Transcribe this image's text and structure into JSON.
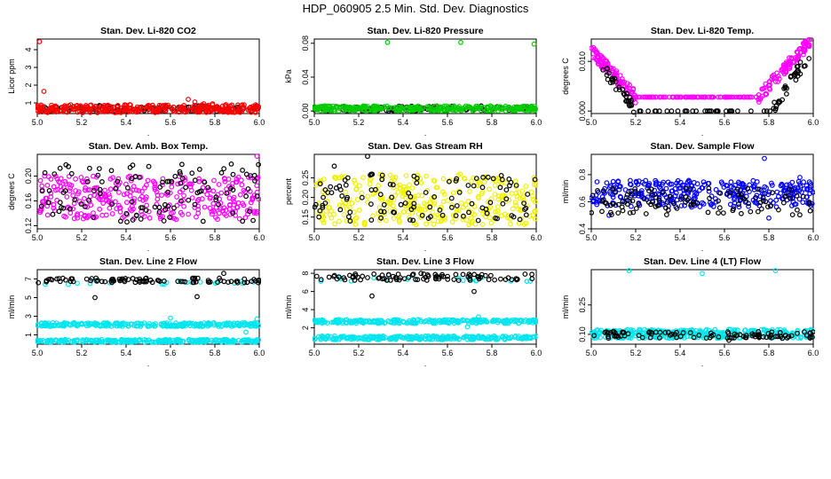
{
  "figure": {
    "title": "HDP_060905  2.5 Min. Std. Dev. Diagnostics"
  },
  "chart_data": [
    {
      "type": "scatter",
      "title": "Stan. Dev. Li-820 CO2",
      "xlabel": ".",
      "ylabel": "Licor ppm",
      "xlim": [
        5.0,
        6.0
      ],
      "ylim": [
        0.4,
        4.6
      ],
      "xticks": [
        "5.0",
        "5.2",
        "5.4",
        "5.6",
        "5.8",
        "6.0"
      ],
      "yticks": [
        "1",
        "2",
        "3",
        "4"
      ],
      "grid": false,
      "series": [
        {
          "name": "black",
          "color": "#000000",
          "band": {
            "x": [
              5.0,
              6.0
            ],
            "ylo": 0.5,
            "yhi": 0.85,
            "n": 110,
            "seed": 11
          }
        },
        {
          "name": "red",
          "color": "#ff0000",
          "band": {
            "x": [
              5.0,
              6.0
            ],
            "ylo": 0.45,
            "yhi": 0.9,
            "n": 320,
            "seed": 12
          },
          "points": [
            [
              5.01,
              4.45
            ],
            [
              5.03,
              1.65
            ],
            [
              5.68,
              1.2
            ],
            [
              5.71,
              1.05
            ],
            [
              5.75,
              0.95
            ],
            [
              5.79,
              0.95
            ],
            [
              5.85,
              0.9
            ]
          ]
        }
      ]
    },
    {
      "type": "scatter",
      "title": "Stan. Dev. Li-820 Pressure",
      "xlabel": ".",
      "ylabel": "kPa",
      "xlim": [
        5.0,
        6.0
      ],
      "ylim": [
        -0.003,
        0.085
      ],
      "xticks": [
        "5.0",
        "5.2",
        "5.4",
        "5.6",
        "5.8",
        "6.0"
      ],
      "yticks": [
        "0.00",
        "0.04",
        "0.08"
      ],
      "grid": false,
      "series": [
        {
          "name": "black",
          "color": "#000000",
          "band": {
            "x": [
              5.0,
              6.0
            ],
            "ylo": 0.0,
            "yhi": 0.006,
            "n": 110,
            "seed": 21
          }
        },
        {
          "name": "green",
          "color": "#00cc00",
          "band": {
            "x": [
              5.0,
              6.0
            ],
            "ylo": 0.0,
            "yhi": 0.006,
            "n": 320,
            "seed": 22
          },
          "points": [
            [
              5.33,
              0.081
            ],
            [
              5.66,
              0.081
            ],
            [
              5.99,
              0.079
            ]
          ]
        }
      ]
    },
    {
      "type": "scatter",
      "title": "Stan. Dev. Li-820 Temp.",
      "xlabel": ".",
      "ylabel": "degrees C",
      "xlim": [
        5.0,
        6.0
      ],
      "ylim": [
        -0.0005,
        0.0145
      ],
      "xticks": [
        "5.0",
        "5.2",
        "5.4",
        "5.6",
        "5.8",
        "6.0"
      ],
      "yticks": [
        "0.000",
        "0.010"
      ],
      "grid": false,
      "series": [
        {
          "name": "magenta",
          "color": "#ff00ff",
          "vshape": {
            "left": [
              5.0,
              5.2,
              0.012,
              0.0028
            ],
            "flat": [
              5.2,
              5.75,
              0.0028
            ],
            "right": [
              5.75,
              5.99,
              0.0028,
              0.0142
            ],
            "n": 300,
            "seed": 31
          }
        },
        {
          "name": "black",
          "color": "#000000",
          "vshape": {
            "left": [
              5.05,
              5.2,
              0.0085,
              0.0005
            ],
            "flat": [
              5.2,
              5.82,
              0.0
            ],
            "right": [
              5.82,
              5.99,
              0.0005,
              0.012
            ],
            "n": 100,
            "seed": 32
          }
        }
      ]
    },
    {
      "type": "scatter",
      "title": "Stan. Dev. Amb. Box Temp.",
      "xlabel": ".",
      "ylabel": "degrees C",
      "xlim": [
        5.0,
        6.0
      ],
      "ylim": [
        0.115,
        0.235
      ],
      "xticks": [
        "5.0",
        "5.2",
        "5.4",
        "5.6",
        "5.8",
        "6.0"
      ],
      "yticks": [
        "0.12",
        "0.16",
        "0.20"
      ],
      "grid": false,
      "series": [
        {
          "name": "magenta",
          "color": "#ff00ff",
          "band": {
            "x": [
              5.0,
              6.0
            ],
            "ylo": 0.13,
            "yhi": 0.2,
            "n": 330,
            "seed": 41
          },
          "points": [
            [
              5.99,
              0.232
            ]
          ]
        },
        {
          "name": "black",
          "color": "#000000",
          "band": {
            "x": [
              5.0,
              6.0
            ],
            "ylo": 0.125,
            "yhi": 0.22,
            "n": 110,
            "seed": 42
          }
        }
      ]
    },
    {
      "type": "scatter",
      "title": "Stan. Dev. Gas Stream RH",
      "xlabel": ".",
      "ylabel": "percent",
      "xlim": [
        5.0,
        6.0
      ],
      "ylim": [
        0.12,
        0.31
      ],
      "xticks": [
        "5.0",
        "5.2",
        "5.4",
        "5.6",
        "5.8",
        "6.0"
      ],
      "yticks": [
        "0.15",
        "0.20",
        "0.25"
      ],
      "grid": false,
      "series": [
        {
          "name": "yellow",
          "color": "#f0f000",
          "band": {
            "x": [
              5.0,
              6.0
            ],
            "ylo": 0.13,
            "yhi": 0.26,
            "n": 330,
            "seed": 51
          }
        },
        {
          "name": "black",
          "color": "#000000",
          "band": {
            "x": [
              5.0,
              6.0
            ],
            "ylo": 0.14,
            "yhi": 0.26,
            "n": 110,
            "seed": 52
          },
          "points": [
            [
              5.24,
              0.305
            ],
            [
              5.09,
              0.28
            ]
          ]
        }
      ]
    },
    {
      "type": "scatter",
      "title": "Stan. Dev. Sample Flow",
      "xlabel": ".",
      "ylabel": "ml/min",
      "xlim": [
        5.0,
        6.0
      ],
      "ylim": [
        0.4,
        0.95
      ],
      "xticks": [
        "5.0",
        "5.2",
        "5.4",
        "5.6",
        "5.8",
        "6.0"
      ],
      "yticks": [
        "0.4",
        "0.6",
        "0.8"
      ],
      "grid": false,
      "series": [
        {
          "name": "blue",
          "color": "#0000ff",
          "band": {
            "x": [
              5.0,
              6.0
            ],
            "ylo": 0.56,
            "yhi": 0.76,
            "n": 330,
            "seed": 61
          },
          "points": [
            [
              5.78,
              0.92
            ],
            [
              5.94,
              0.78
            ],
            [
              5.08,
              0.5
            ],
            [
              5.8,
              0.48
            ]
          ]
        },
        {
          "name": "black",
          "color": "#000000",
          "band": {
            "x": [
              5.0,
              6.0
            ],
            "ylo": 0.5,
            "yhi": 0.7,
            "n": 110,
            "seed": 62
          }
        }
      ]
    },
    {
      "type": "scatter",
      "title": "Stan. Dev. Line 2 Flow",
      "xlabel": ".",
      "ylabel": "ml/min",
      "xlim": [
        5.0,
        6.0
      ],
      "ylim": [
        0.0,
        8.0
      ],
      "xticks": [
        "5.0",
        "5.2",
        "5.4",
        "5.6",
        "5.8",
        "6.0"
      ],
      "yticks": [
        "1",
        "3",
        "5",
        "7"
      ],
      "grid": false,
      "series": [
        {
          "name": "cyan-low",
          "color": "#00e5ee",
          "band": {
            "x": [
              5.0,
              6.0
            ],
            "ylo": 0.2,
            "yhi": 0.5,
            "n": 260,
            "seed": 71
          }
        },
        {
          "name": "cyan-mid",
          "color": "#00e5ee",
          "band": {
            "x": [
              5.0,
              6.0
            ],
            "ylo": 1.9,
            "yhi": 2.3,
            "n": 260,
            "seed": 72
          },
          "points": [
            [
              5.6,
              2.8
            ],
            [
              5.99,
              2.7
            ],
            [
              5.94,
              1.3
            ]
          ]
        },
        {
          "name": "cyan-top",
          "color": "#00e5ee",
          "band": {
            "x": [
              5.0,
              6.0
            ],
            "ylo": 6.3,
            "yhi": 6.9,
            "n": 20,
            "seed": 73
          }
        },
        {
          "name": "black",
          "color": "#000000",
          "band": {
            "x": [
              5.0,
              6.0
            ],
            "ylo": 6.6,
            "yhi": 7.1,
            "n": 90,
            "seed": 74
          },
          "points": [
            [
              5.26,
              5.0
            ],
            [
              5.72,
              5.1
            ],
            [
              5.84,
              7.6
            ]
          ]
        }
      ]
    },
    {
      "type": "scatter",
      "title": "Stan. Dev. Line 3 Flow",
      "xlabel": ".",
      "ylabel": "ml/min",
      "xlim": [
        5.0,
        6.0
      ],
      "ylim": [
        0.2,
        8.4
      ],
      "xticks": [
        "5.0",
        "5.2",
        "5.4",
        "5.6",
        "5.8",
        "6.0"
      ],
      "yticks": [
        "2",
        "4",
        "6",
        "8"
      ],
      "grid": false,
      "series": [
        {
          "name": "cyan-low",
          "color": "#00e5ee",
          "band": {
            "x": [
              5.0,
              6.0
            ],
            "ylo": 0.7,
            "yhi": 1.1,
            "n": 260,
            "seed": 81
          }
        },
        {
          "name": "cyan-mid",
          "color": "#00e5ee",
          "band": {
            "x": [
              5.0,
              6.0
            ],
            "ylo": 2.5,
            "yhi": 2.9,
            "n": 260,
            "seed": 82
          },
          "points": [
            [
              5.74,
              3.2
            ],
            [
              5.69,
              2.1
            ]
          ]
        },
        {
          "name": "cyan-top",
          "color": "#00e5ee",
          "band": {
            "x": [
              5.0,
              6.0
            ],
            "ylo": 7.0,
            "yhi": 7.6,
            "n": 20,
            "seed": 83
          }
        },
        {
          "name": "black",
          "color": "#000000",
          "band": {
            "x": [
              5.0,
              6.0
            ],
            "ylo": 7.2,
            "yhi": 8.0,
            "n": 90,
            "seed": 84
          },
          "points": [
            [
              5.26,
              5.5
            ],
            [
              5.72,
              6.0
            ]
          ]
        }
      ]
    },
    {
      "type": "scatter",
      "title": "Stan. Dev. Line 4 (LT) Flow",
      "xlabel": ".",
      "ylabel": "ml/min",
      "xlim": [
        5.0,
        6.0
      ],
      "ylim": [
        0.05,
        0.43
      ],
      "xticks": [
        "5.0",
        "5.2",
        "5.4",
        "5.6",
        "5.8",
        "6.0"
      ],
      "yticks": [
        "0.10",
        "0.25"
      ],
      "grid": false,
      "series": [
        {
          "name": "cyan",
          "color": "#00e5ee",
          "band": {
            "x": [
              5.0,
              6.0
            ],
            "ylo": 0.08,
            "yhi": 0.125,
            "n": 330,
            "seed": 91
          },
          "points": [
            [
              5.17,
              0.425
            ],
            [
              5.5,
              0.41
            ],
            [
              5.83,
              0.425
            ]
          ]
        },
        {
          "name": "black",
          "color": "#000000",
          "band": {
            "x": [
              5.0,
              6.0
            ],
            "ylo": 0.08,
            "yhi": 0.115,
            "n": 100,
            "seed": 92
          },
          "points": [
            [
              5.62,
              0.07
            ]
          ]
        }
      ]
    }
  ]
}
